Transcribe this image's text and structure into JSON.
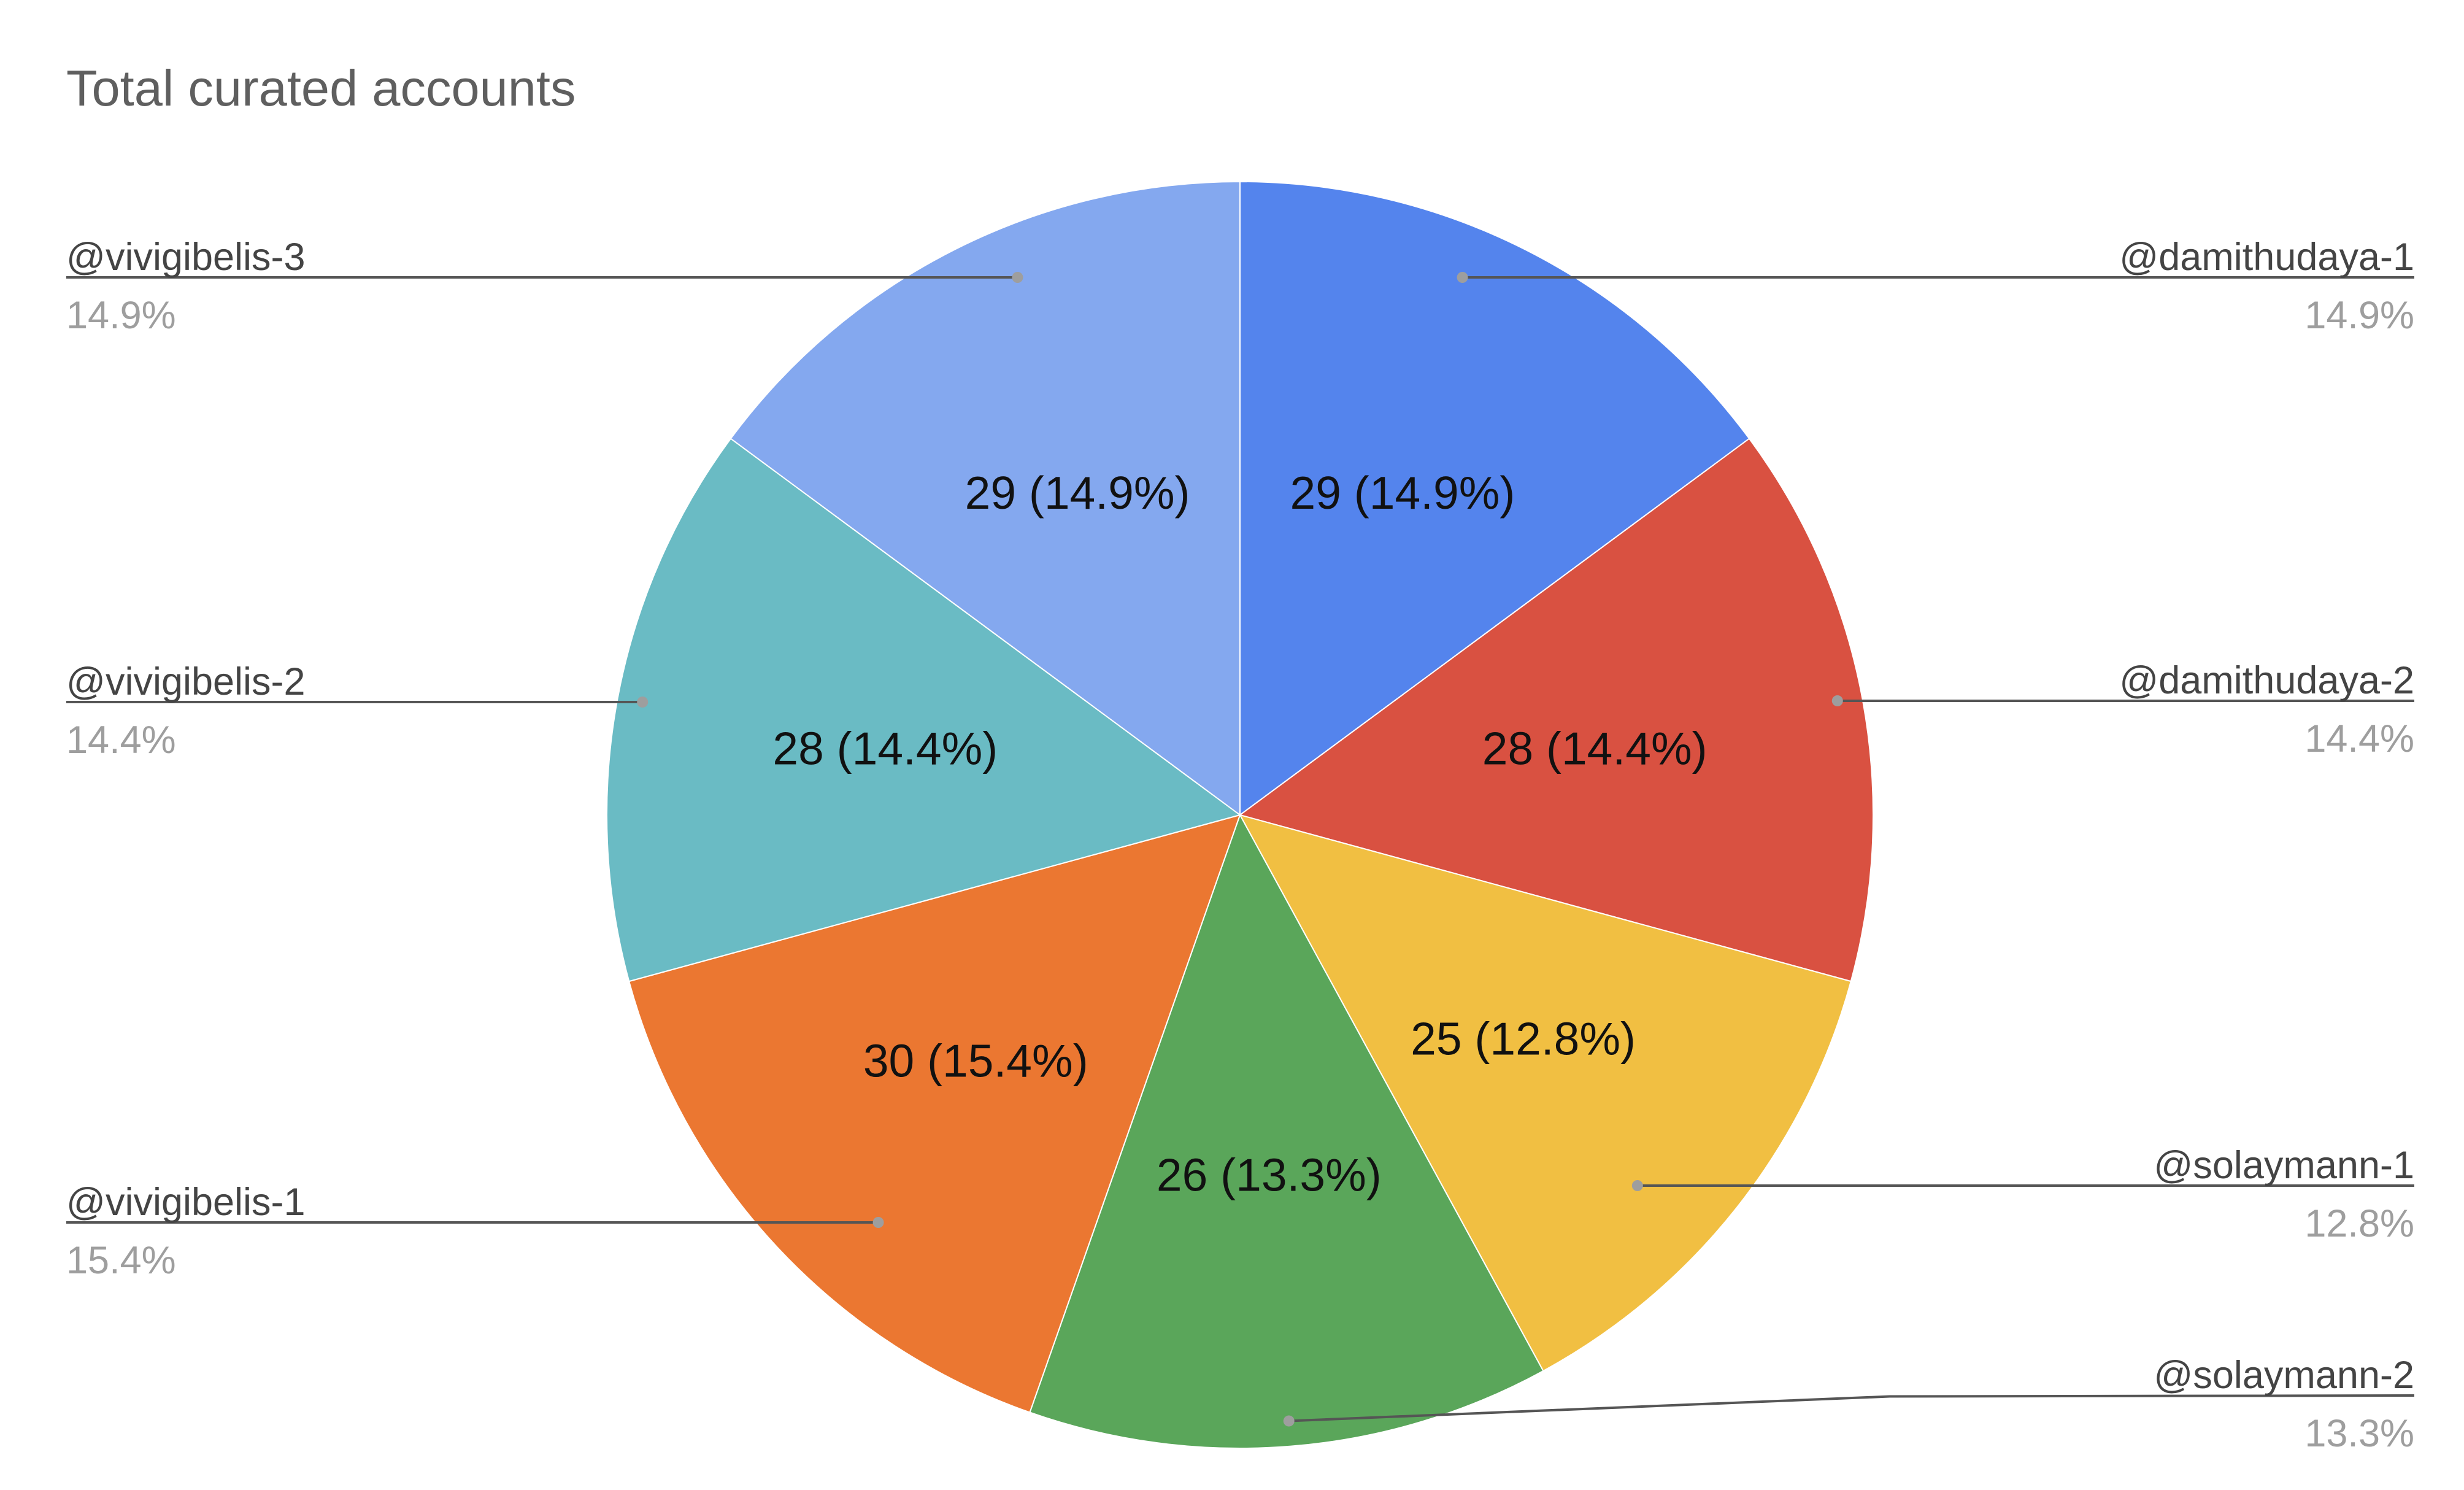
{
  "chart_data": {
    "type": "pie",
    "title": "Total curated accounts",
    "slices": [
      {
        "name": "@damithudaya-1",
        "value": 29,
        "percent": "14.9%",
        "label": "29 (14.9%)",
        "color": "#5484ED"
      },
      {
        "name": "@damithudaya-2",
        "value": 28,
        "percent": "14.4%",
        "label": "28 (14.4%)",
        "color": "#D95141"
      },
      {
        "name": "@solaymann-1",
        "value": 25,
        "percent": "12.8%",
        "label": "25 (12.8%)",
        "color": "#F1BF42"
      },
      {
        "name": "@solaymann-2",
        "value": 26,
        "percent": "13.3%",
        "label": "26 (13.3%)",
        "color": "#5AA65A"
      },
      {
        "name": "@vivigibelis-1",
        "value": 30,
        "percent": "15.4%",
        "label": "30 (15.4%)",
        "color": "#EB7731"
      },
      {
        "name": "@vivigibelis-2",
        "value": 28,
        "percent": "14.4%",
        "label": "28 (14.4%)",
        "color": "#6ABBC4"
      },
      {
        "name": "@vivigibelis-3",
        "value": 29,
        "percent": "14.9%",
        "label": "29 (14.9%)",
        "color": "#84A8EF"
      }
    ],
    "legend": "outside-labels"
  }
}
